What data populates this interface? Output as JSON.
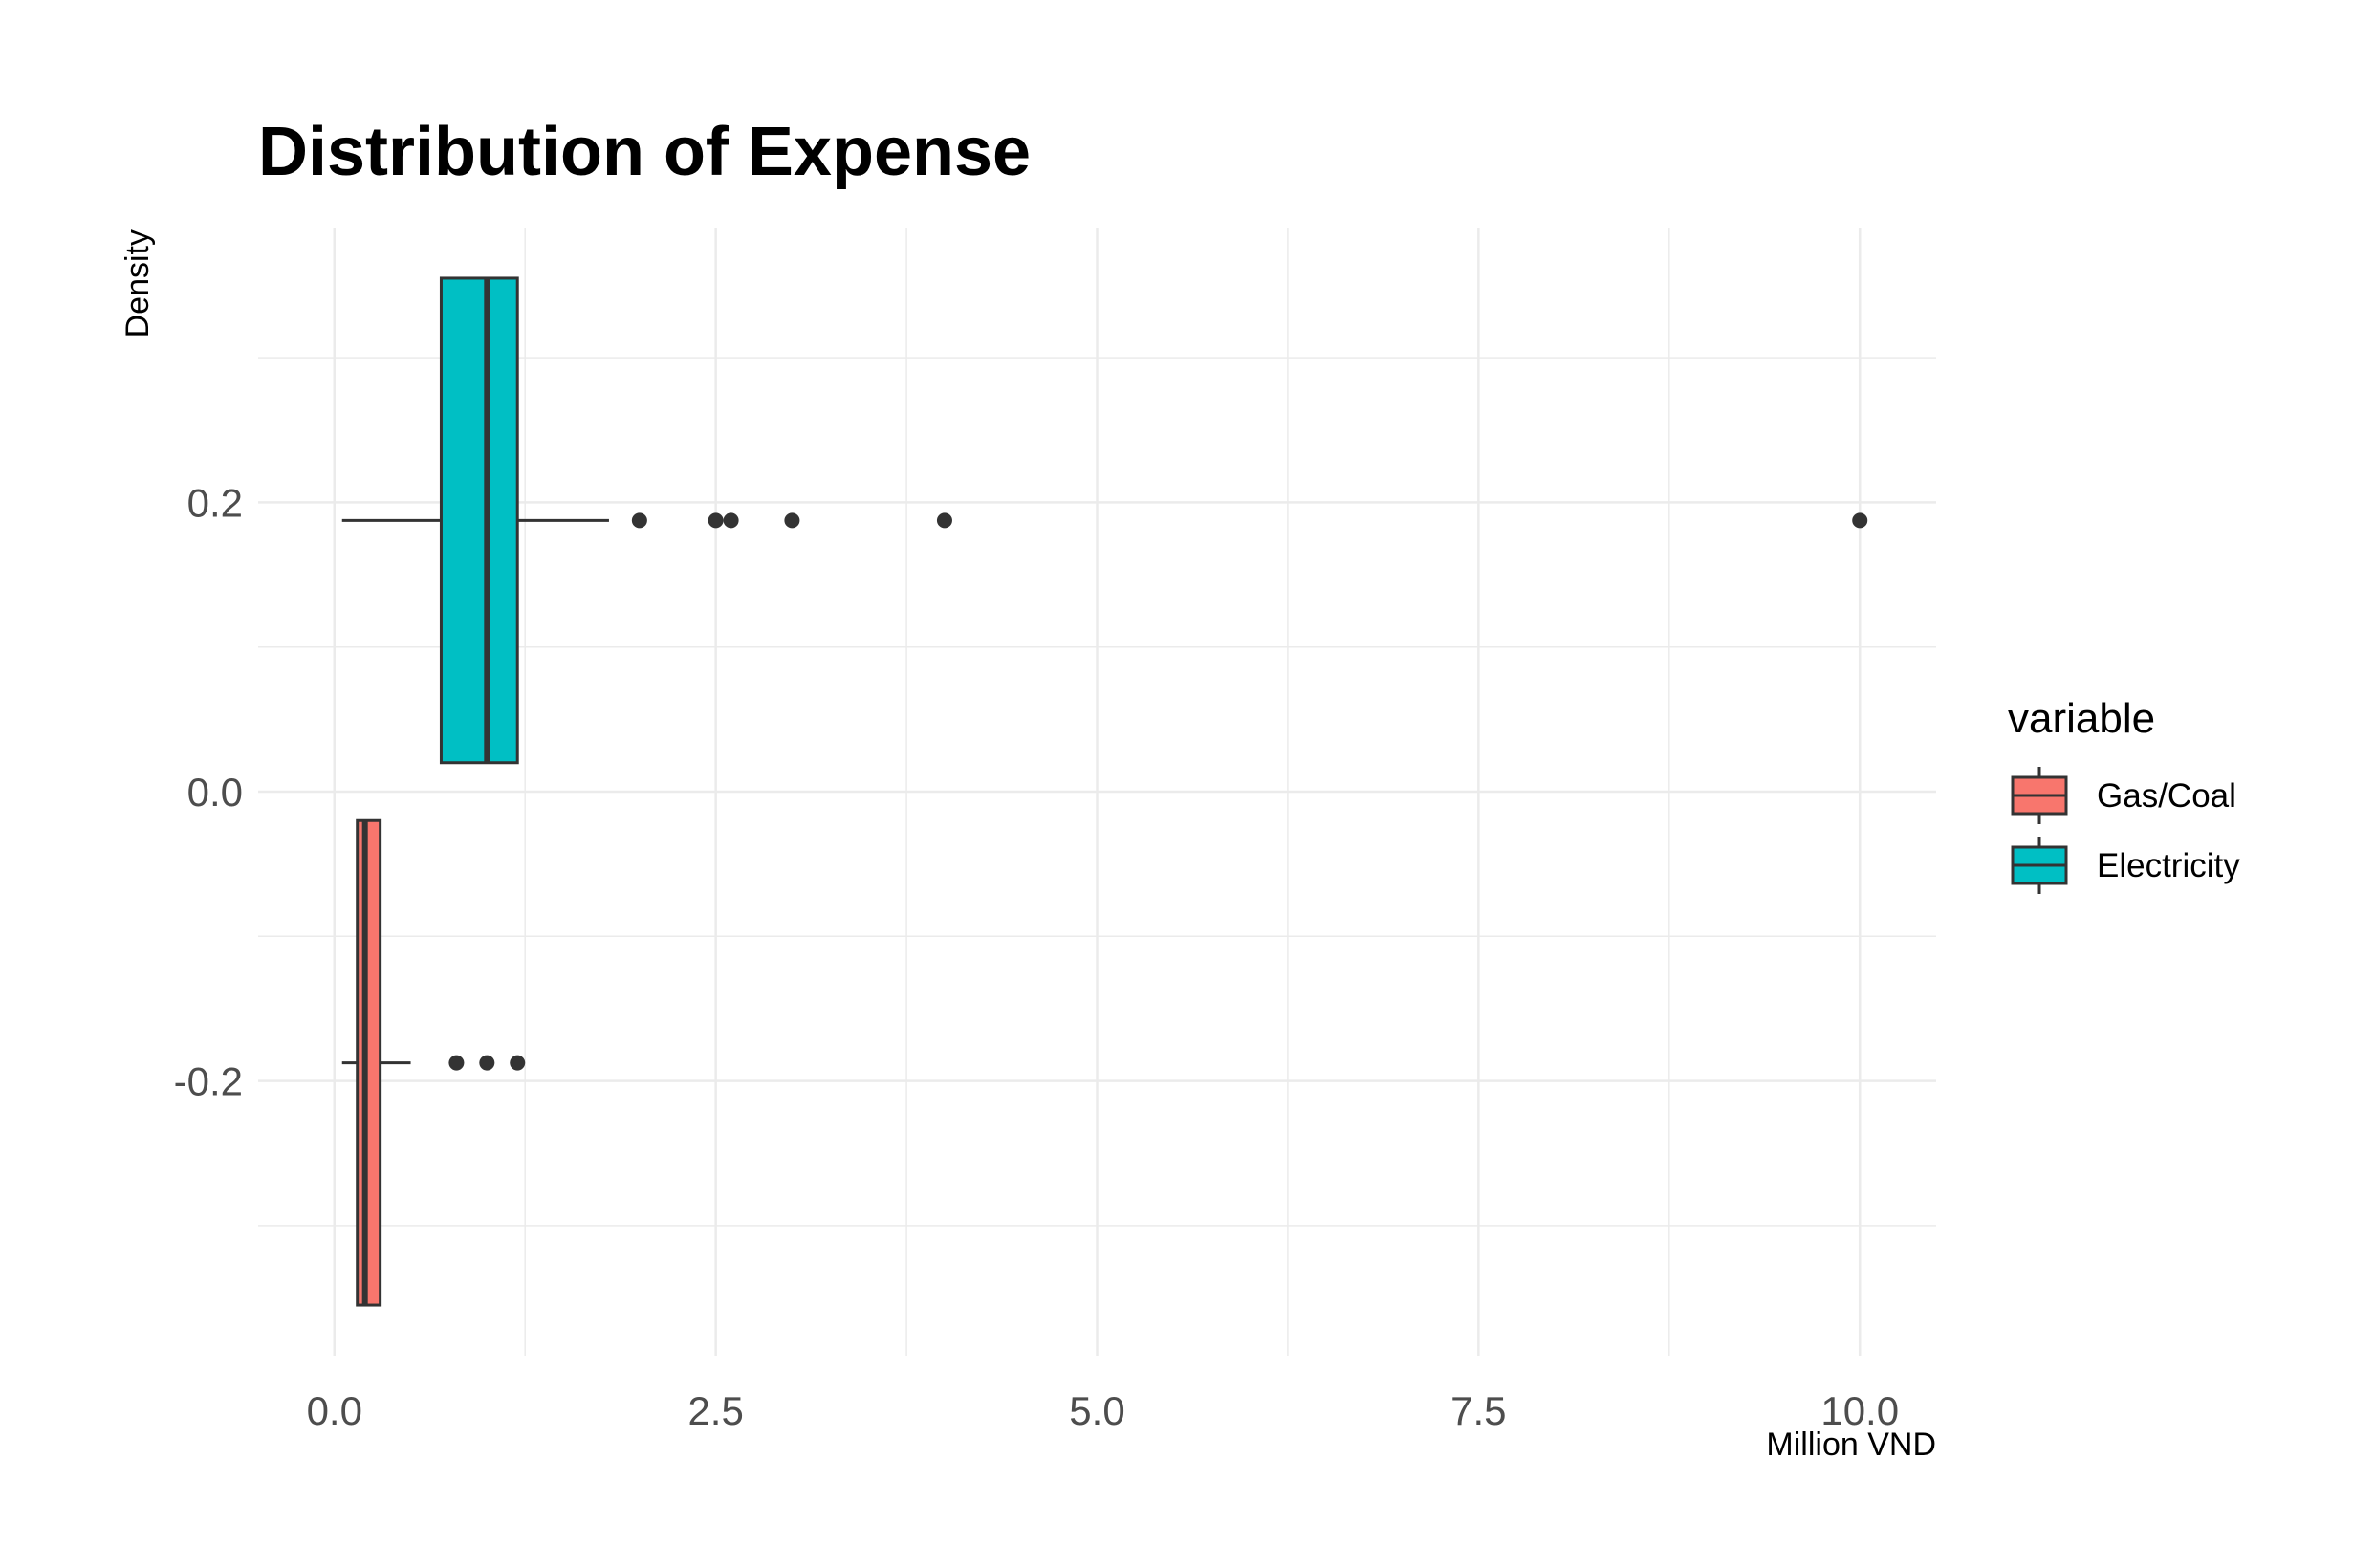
{
  "chart_data": {
    "type": "boxplot",
    "orientation": "horizontal",
    "title": "Distribution of Expense",
    "xlabel": "Million VND",
    "ylabel": "Density",
    "xlim": [
      -0.5,
      10.5
    ],
    "ylim": [
      -0.39,
      0.39
    ],
    "xticks": [
      0.0,
      2.5,
      5.0,
      7.5,
      10.0
    ],
    "xtick_labels": [
      "0.0",
      "2.5",
      "5.0",
      "7.5",
      "10.0"
    ],
    "yticks": [
      -0.2,
      0.0,
      0.2
    ],
    "ytick_labels": [
      "-0.2",
      "0.0",
      "0.2"
    ],
    "grid": true,
    "legend": {
      "title": "variable",
      "position": "right",
      "entries": [
        "Gas/Coal",
        "Electricity"
      ]
    },
    "series": [
      {
        "name": "Gas/Coal",
        "color": "#F8766D",
        "y_center": -0.1875,
        "box_ymin": -0.355,
        "box_ymax": -0.02,
        "whisker_low": 0.05,
        "q1": 0.15,
        "median": 0.2,
        "q3": 0.3,
        "whisker_high": 0.5,
        "outliers": [
          0.8,
          1.0,
          1.2
        ]
      },
      {
        "name": "Electricity",
        "color": "#00BFC4",
        "y_center": 0.1875,
        "box_ymin": 0.02,
        "box_ymax": 0.355,
        "whisker_low": 0.05,
        "q1": 0.7,
        "median": 1.0,
        "q3": 1.2,
        "whisker_high": 1.8,
        "outliers": [
          2.0,
          2.5,
          2.6,
          3.0,
          4.0,
          10.0
        ]
      }
    ]
  }
}
